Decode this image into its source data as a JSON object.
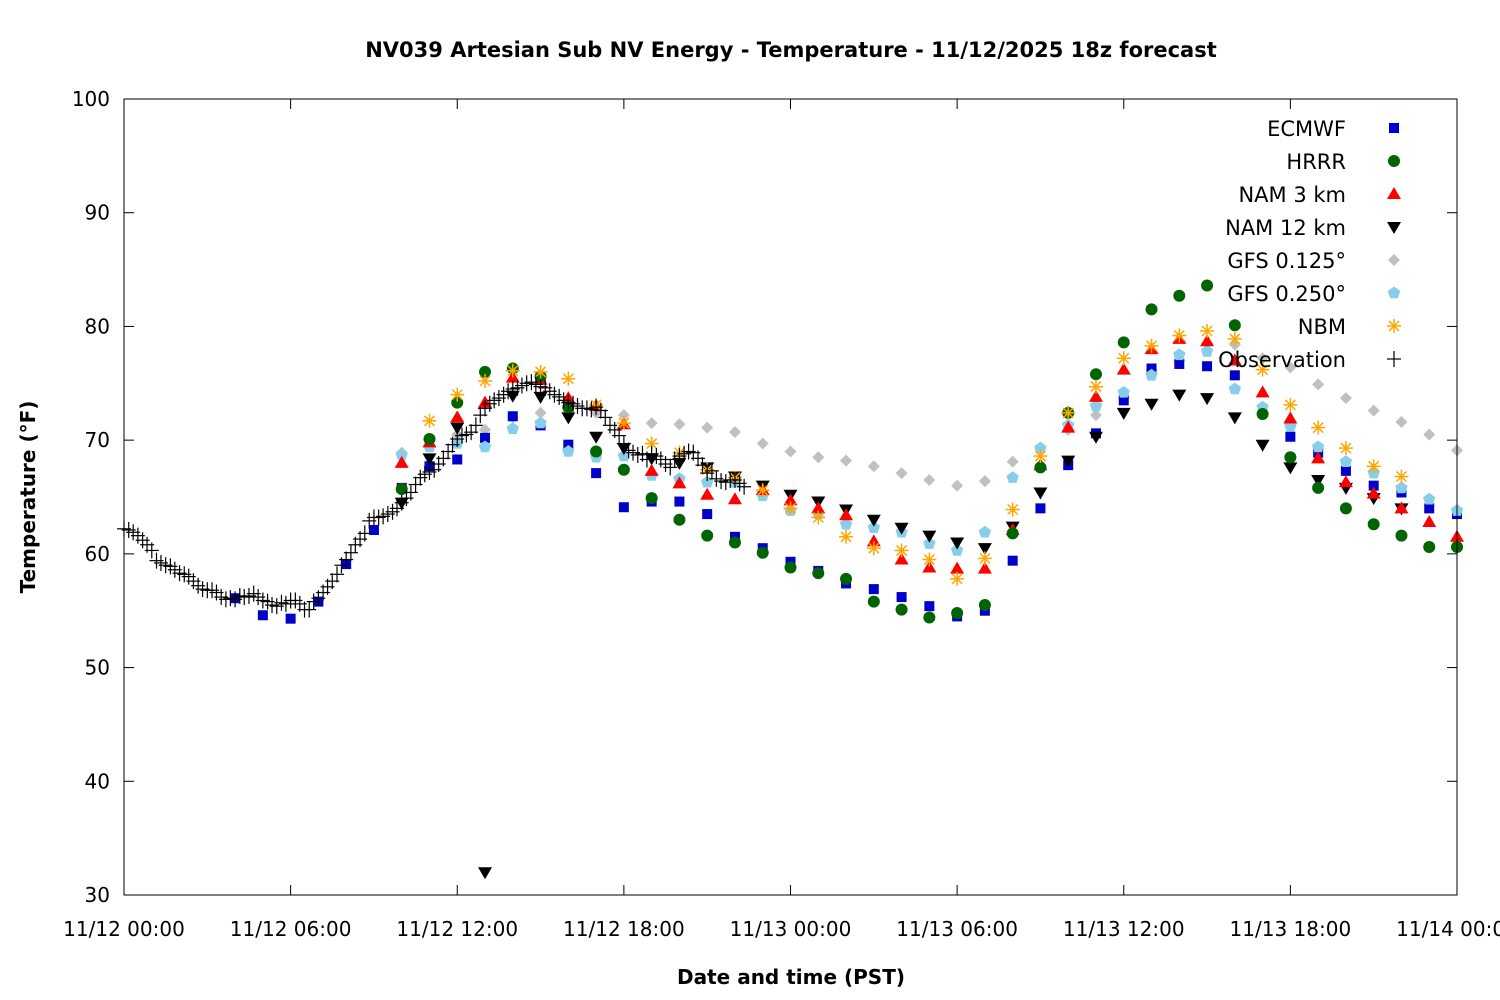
{
  "chart_data": {
    "type": "scatter",
    "title": "NV039 Artesian Sub NV Energy - Temperature - 11/12/2025 18z forecast",
    "xlabel": "Date and time (PST)",
    "ylabel": "Temperature (°F)",
    "x_unit": "hours since 11/12 00:00",
    "xlim": [
      0,
      48
    ],
    "ylim": [
      30,
      100
    ],
    "grid": false,
    "legend_position": "top-right",
    "xticks": [
      {
        "value": 0,
        "label": "11/12 00:00"
      },
      {
        "value": 6,
        "label": "11/12 06:00"
      },
      {
        "value": 12,
        "label": "11/12 12:00"
      },
      {
        "value": 18,
        "label": "11/12 18:00"
      },
      {
        "value": 24,
        "label": "11/13 00:00"
      },
      {
        "value": 30,
        "label": "11/13 06:00"
      },
      {
        "value": 36,
        "label": "11/13 12:00"
      },
      {
        "value": 42,
        "label": "11/13 18:00"
      },
      {
        "value": 48,
        "label": "11/14 00:00"
      }
    ],
    "yticks": [
      {
        "value": 30,
        "label": "30"
      },
      {
        "value": 40,
        "label": "40"
      },
      {
        "value": 50,
        "label": "50"
      },
      {
        "value": 60,
        "label": "60"
      },
      {
        "value": 70,
        "label": "70"
      },
      {
        "value": 80,
        "label": "80"
      },
      {
        "value": 90,
        "label": "90"
      },
      {
        "value": 100,
        "label": "100"
      }
    ],
    "series": [
      {
        "name": "ECMWF",
        "marker": "square",
        "color": "#0000cc",
        "x": [
          4,
          5,
          6,
          7,
          8,
          9,
          10,
          11,
          12,
          13,
          14,
          15,
          16,
          17,
          18,
          19,
          20,
          21,
          22,
          23,
          24,
          25,
          26,
          27,
          28,
          29,
          30,
          31,
          32,
          33,
          34,
          35,
          36,
          37,
          38,
          39,
          40,
          41,
          42,
          43,
          44,
          45,
          46,
          47,
          48
        ],
        "y": [
          56.1,
          54.6,
          54.3,
          55.8,
          59.1,
          62.1,
          65.8,
          67.7,
          68.3,
          70.2,
          72.1,
          71.3,
          69.6,
          67.1,
          64.1,
          64.6,
          64.6,
          63.5,
          61.5,
          60.5,
          59.3,
          58.5,
          57.4,
          56.9,
          56.2,
          55.4,
          54.5,
          55.0,
          59.4,
          64.0,
          67.8,
          70.6,
          73.5,
          76.3,
          76.7,
          76.5,
          75.7,
          null,
          70.3,
          68.9,
          67.3,
          66.0,
          65.4,
          64.0,
          63.5
        ]
      },
      {
        "name": "HRRR",
        "marker": "circle",
        "color": "#006400",
        "x": [
          10,
          11,
          12,
          13,
          14,
          15,
          16,
          17,
          18,
          19,
          20,
          21,
          22,
          23,
          24,
          25,
          26,
          27,
          28,
          29,
          30,
          31,
          32,
          33,
          34,
          35,
          36,
          37,
          38,
          39,
          40,
          41,
          42,
          43,
          44,
          45,
          46,
          47,
          48
        ],
        "y": [
          65.7,
          70.1,
          73.3,
          76.0,
          76.3,
          75.6,
          72.9,
          69.0,
          67.4,
          64.9,
          63.0,
          61.6,
          61.0,
          60.1,
          58.8,
          58.3,
          57.8,
          55.8,
          55.1,
          54.4,
          54.8,
          55.5,
          61.8,
          67.6,
          72.4,
          75.8,
          78.6,
          81.5,
          82.7,
          83.6,
          80.1,
          72.3,
          68.5,
          65.8,
          64.0,
          62.6,
          61.6,
          60.6,
          60.6
        ]
      },
      {
        "name": "NAM 3 km",
        "marker": "triangle-up",
        "color": "#ff0000",
        "x": [
          10,
          11,
          12,
          13,
          14,
          15,
          16,
          17,
          18,
          19,
          20,
          21,
          22,
          23,
          24,
          25,
          26,
          27,
          28,
          29,
          30,
          31,
          32,
          33,
          34,
          35,
          36,
          37,
          38,
          39,
          40,
          41,
          42,
          43,
          44,
          45,
          46,
          47,
          48
        ],
        "y": [
          68.0,
          69.8,
          72.0,
          73.3,
          75.5,
          75.3,
          73.7,
          73.0,
          71.4,
          67.3,
          66.2,
          65.2,
          64.8,
          65.6,
          64.7,
          64.0,
          63.4,
          61.1,
          59.5,
          58.8,
          58.7,
          58.7,
          62.1,
          67.8,
          71.1,
          73.8,
          76.2,
          78.0,
          78.9,
          78.7,
          77.0,
          74.2,
          71.9,
          68.4,
          66.3,
          65.3,
          64.0,
          62.8,
          61.5
        ]
      },
      {
        "name": "NAM 12 km",
        "marker": "triangle-down",
        "color": "#000000",
        "x": [
          10,
          11,
          12,
          13,
          14,
          15,
          16,
          17,
          18,
          19,
          20,
          21,
          22,
          23,
          24,
          25,
          26,
          27,
          28,
          29,
          30,
          31,
          32,
          33,
          34,
          35,
          36,
          37,
          38,
          39,
          40,
          41,
          42,
          43,
          44,
          45,
          46,
          47,
          48
        ],
        "y": [
          64.5,
          68.4,
          71.1,
          32.0,
          73.9,
          73.8,
          72.0,
          70.3,
          69.3,
          68.4,
          68.0,
          67.6,
          66.8,
          66.0,
          65.2,
          64.6,
          63.9,
          63.0,
          62.3,
          61.6,
          61.0,
          60.5,
          62.4,
          65.4,
          68.2,
          70.3,
          72.4,
          73.2,
          74.0,
          73.7,
          72.0,
          69.6,
          67.6,
          66.5,
          65.8,
          64.9,
          64.0,
          null,
          null
        ]
      },
      {
        "name": "GFS 0.125°",
        "marker": "diamond",
        "color": "#c0c0c0",
        "x": [
          10,
          11,
          12,
          13,
          14,
          15,
          16,
          17,
          18,
          19,
          20,
          21,
          22,
          23,
          24,
          25,
          26,
          27,
          28,
          29,
          30,
          31,
          32,
          33,
          34,
          35,
          36,
          37,
          38,
          39,
          40,
          41,
          42,
          43,
          44,
          45,
          46,
          47,
          48
        ],
        "y": [
          68.9,
          69.5,
          70.5,
          70.9,
          72.0,
          72.4,
          72.5,
          72.4,
          72.2,
          71.5,
          71.4,
          71.1,
          70.7,
          69.7,
          69.0,
          68.5,
          68.2,
          67.7,
          67.1,
          66.5,
          66.0,
          66.4,
          68.1,
          69.3,
          70.9,
          72.2,
          73.7,
          76.2,
          77.0,
          78.5,
          78.4,
          77.2,
          76.4,
          74.9,
          73.7,
          72.6,
          71.6,
          70.5,
          69.1
        ]
      },
      {
        "name": "GFS 0.250°",
        "marker": "pentagon",
        "color": "#87ceeb",
        "x": [
          10,
          11,
          12,
          13,
          14,
          15,
          16,
          17,
          18,
          19,
          20,
          21,
          22,
          23,
          24,
          25,
          26,
          27,
          28,
          29,
          30,
          31,
          32,
          33,
          34,
          35,
          36,
          37,
          38,
          39,
          40,
          41,
          42,
          43,
          44,
          45,
          46,
          47,
          48
        ],
        "y": [
          68.7,
          69.4,
          69.7,
          69.4,
          71.0,
          71.5,
          69.0,
          68.5,
          68.6,
          66.9,
          66.6,
          66.3,
          66.3,
          65.1,
          63.8,
          63.5,
          62.6,
          62.3,
          61.9,
          60.9,
          60.3,
          61.9,
          66.7,
          69.3,
          71.3,
          73.0,
          74.2,
          75.7,
          77.5,
          77.8,
          74.5,
          72.9,
          71.2,
          69.4,
          68.1,
          67.1,
          65.8,
          64.8,
          63.8
        ]
      },
      {
        "name": "NBM",
        "marker": "star",
        "color": "#ffa500",
        "x": [
          11,
          12,
          13,
          14,
          15,
          16,
          17,
          18,
          19,
          20,
          21,
          22,
          23,
          24,
          25,
          26,
          27,
          28,
          29,
          30,
          31,
          32,
          33,
          34,
          35,
          36,
          37,
          38,
          39,
          40,
          41,
          42,
          43,
          44,
          45,
          46
        ],
        "y": [
          71.7,
          74.0,
          75.2,
          76.1,
          76.0,
          75.4,
          73.1,
          71.5,
          69.7,
          68.9,
          67.4,
          66.7,
          65.6,
          64.0,
          63.2,
          61.5,
          60.5,
          60.3,
          59.5,
          57.8,
          59.6,
          63.9,
          68.6,
          72.4,
          74.7,
          77.2,
          78.3,
          79.2,
          79.6,
          78.9,
          76.2,
          73.1,
          71.1,
          69.3,
          67.7,
          66.8
        ]
      },
      {
        "name": "Observation",
        "marker": "plus",
        "color": "#000000",
        "x": [
          0,
          0.17,
          0.33,
          0.5,
          0.67,
          0.83,
          1,
          1.17,
          1.33,
          1.5,
          1.67,
          1.83,
          2,
          2.17,
          2.33,
          2.5,
          2.67,
          2.83,
          3,
          3.17,
          3.33,
          3.5,
          3.67,
          3.83,
          4,
          4.17,
          4.33,
          4.5,
          4.67,
          4.83,
          5,
          5.17,
          5.33,
          5.5,
          5.67,
          5.83,
          6,
          6.17,
          6.33,
          6.5,
          6.67,
          6.83,
          7,
          7.17,
          7.33,
          7.5,
          7.67,
          7.83,
          8,
          8.17,
          8.33,
          8.5,
          8.67,
          8.83,
          9,
          9.17,
          9.33,
          9.5,
          9.67,
          9.83,
          10,
          10.17,
          10.33,
          10.5,
          10.67,
          10.83,
          11,
          11.17,
          11.33,
          11.5,
          11.67,
          11.83,
          12,
          12.17,
          12.33,
          12.5,
          12.67,
          12.83,
          13,
          13.17,
          13.33,
          13.5,
          13.67,
          13.83,
          14,
          14.17,
          14.33,
          14.5,
          14.67,
          14.83,
          15,
          15.17,
          15.33,
          15.5,
          15.67,
          15.83,
          16,
          16.17,
          16.33,
          16.5,
          16.67,
          16.83,
          17,
          17.17,
          17.33,
          17.5,
          17.67,
          17.83,
          18,
          18.17,
          18.33,
          18.5,
          18.67,
          18.83,
          19,
          19.17,
          19.33,
          19.5,
          19.67,
          19.83,
          20,
          20.17,
          20.33,
          20.5,
          20.67,
          20.83,
          21,
          21.17,
          21.33,
          21.5,
          21.67,
          21.83,
          22,
          22.17,
          22.33
        ],
        "y": [
          62.2,
          62.1,
          61.9,
          61.6,
          61.2,
          60.8,
          60.3,
          59.4,
          59.2,
          59.0,
          58.9,
          58.6,
          58.3,
          58.2,
          58.0,
          57.6,
          57.2,
          56.9,
          56.8,
          56.8,
          56.6,
          56.2,
          56.0,
          56.1,
          56.0,
          56.3,
          56.2,
          56.3,
          56.5,
          56.2,
          55.9,
          55.8,
          55.5,
          55.4,
          55.7,
          55.6,
          55.9,
          55.9,
          55.6,
          55.1,
          55.1,
          55.8,
          56.1,
          56.6,
          57.1,
          57.6,
          58.2,
          59.0,
          59.5,
          60.1,
          60.8,
          61.3,
          61.8,
          62.9,
          63.2,
          63.2,
          63.3,
          63.5,
          63.7,
          64.0,
          64.5,
          64.9,
          65.4,
          66.1,
          66.7,
          67.0,
          67.2,
          67.4,
          67.9,
          68.4,
          69.0,
          69.6,
          70.1,
          70.4,
          70.5,
          70.7,
          71.3,
          72.2,
          72.8,
          73.2,
          73.5,
          73.7,
          74.0,
          74.3,
          74.5,
          74.6,
          74.8,
          75.0,
          75.1,
          74.9,
          74.7,
          74.6,
          74.3,
          74.0,
          73.8,
          73.5,
          73.3,
          73.2,
          73.0,
          72.8,
          72.8,
          72.7,
          72.9,
          72.6,
          72.0,
          71.3,
          70.9,
          70.4,
          69.7,
          69.1,
          68.9,
          68.7,
          68.8,
          68.3,
          68.8,
          68.6,
          68.3,
          67.9,
          67.6,
          68.3,
          68.6,
          68.8,
          69.0,
          68.9,
          68.4,
          67.8,
          67.1,
          67.3,
          66.6,
          66.4,
          66.3,
          66.5,
          66.5,
          66.2,
          65.9
        ]
      }
    ]
  }
}
